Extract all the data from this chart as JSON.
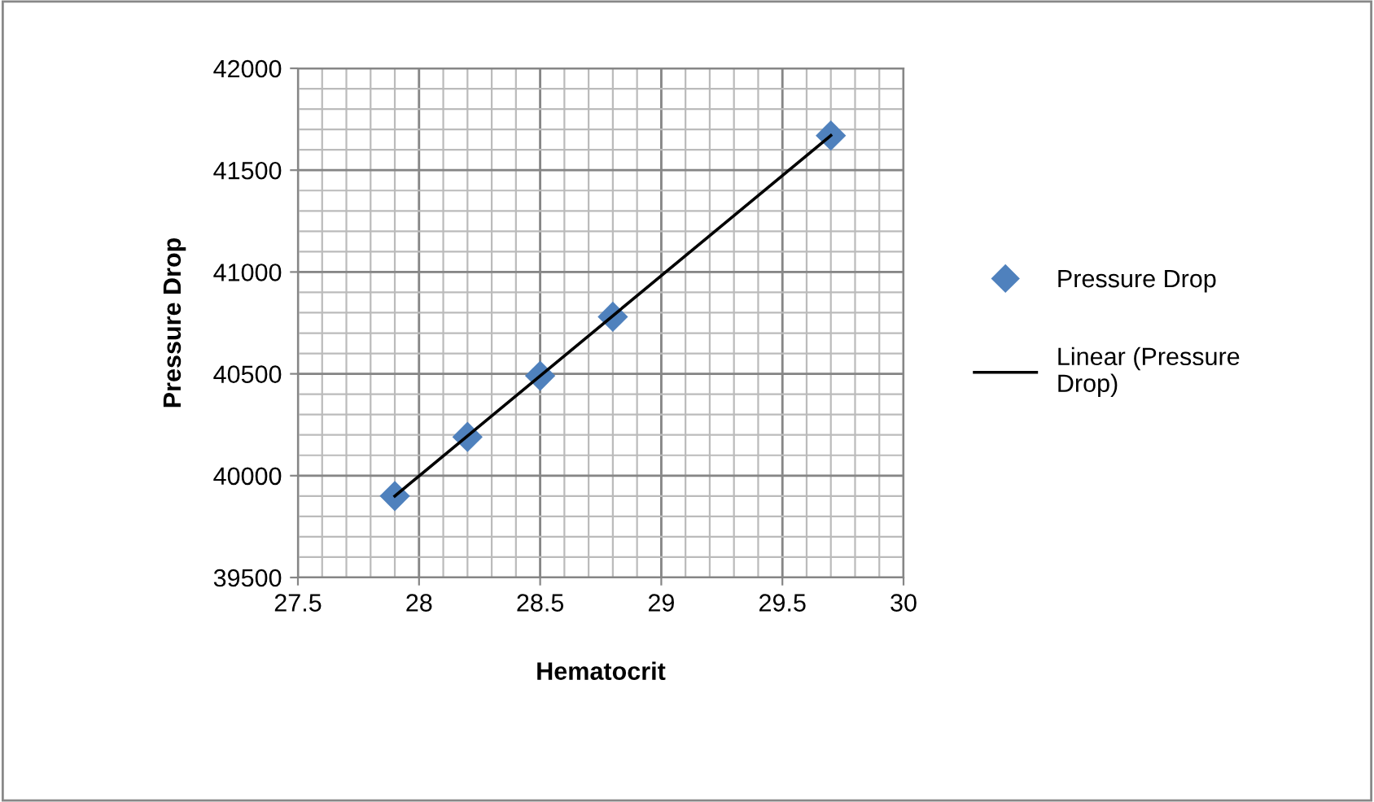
{
  "chart_data": {
    "type": "scatter",
    "xlabel": "Hematocrit",
    "ylabel": "Pressure Drop",
    "series": [
      {
        "name": "Pressure Drop",
        "color": "#4f81bd",
        "marker": "diamond",
        "x": [
          27.9,
          28.2,
          28.5,
          28.8,
          29.7
        ],
        "values": [
          39900,
          40190,
          40490,
          40780,
          41670
        ]
      },
      {
        "name": "Linear (Pressure Drop)",
        "type": "line",
        "color": "#000000",
        "marker": "none",
        "line_style": "solid",
        "x": [
          27.9,
          29.7
        ],
        "values": [
          39900,
          41670
        ]
      }
    ],
    "xlim": [
      27.5,
      30
    ],
    "xticks": [
      27.5,
      28,
      28.5,
      29,
      29.5,
      30
    ],
    "ylim": [
      39500,
      42000
    ],
    "yticks": [
      39500,
      40000,
      40500,
      41000,
      41500,
      42000
    ],
    "grid": true,
    "legend": "right"
  }
}
